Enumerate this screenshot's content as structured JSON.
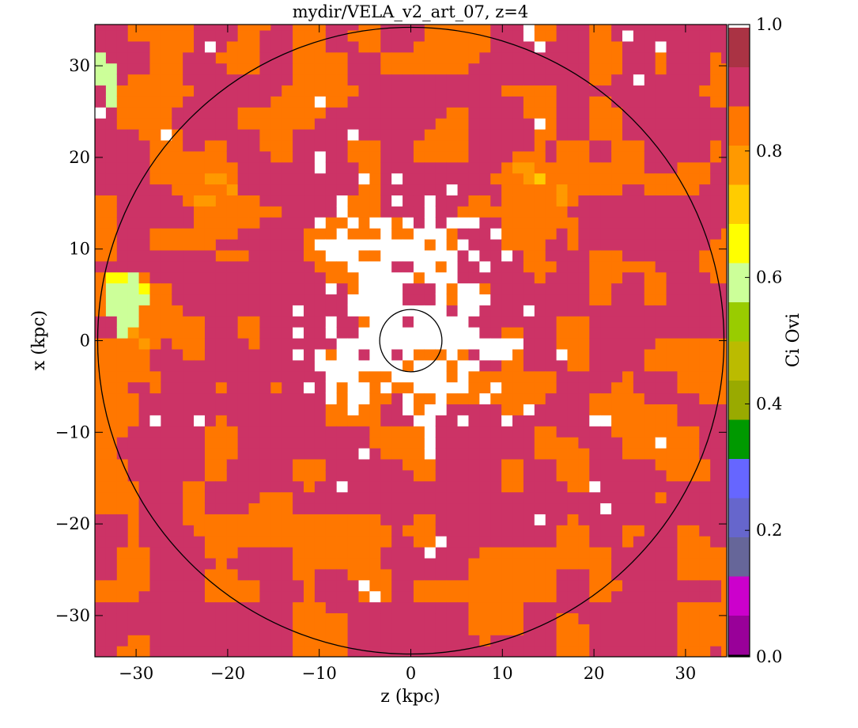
{
  "chart_data": {
    "type": "heatmap",
    "title": "mydir/VELA_v2_art_07, z=4",
    "xlabel": "z  (kpc)",
    "ylabel": "x  (kpc)",
    "xlim": [
      -34.5,
      34.5
    ],
    "ylim": [
      -34.5,
      34.5
    ],
    "x_ticks": [
      -30,
      -20,
      -10,
      0,
      10,
      20,
      30
    ],
    "y_ticks": [
      -30,
      -20,
      -10,
      0,
      10,
      20,
      30
    ],
    "colorbar": {
      "label": "Ci Ovi",
      "range": [
        0.0,
        1.0
      ],
      "ticks": [
        0.0,
        0.2,
        0.4,
        0.6,
        0.8,
        1.0
      ],
      "colors": [
        "#000000",
        "#990099",
        "#cc00cc",
        "#666699",
        "#6666cc",
        "#6666ff",
        "#009900",
        "#99aa00",
        "#bbbb00",
        "#99cc00",
        "#ccff99",
        "#ffff00",
        "#ffcc00",
        "#ff9900",
        "#ff7700",
        "#cc3366",
        "#aa3344",
        "#ffffff"
      ]
    },
    "background_value": 0.9,
    "circles": [
      {
        "center": [
          0,
          0
        ],
        "radius": 34.2
      },
      {
        "center": [
          0,
          0
        ],
        "radius": 3.4
      }
    ],
    "regions": [
      {
        "label": "central white (saturated) zone",
        "value": 1.0,
        "center": [
          0,
          5
        ],
        "extent": "approx |z|<12, -17<x<17"
      },
      {
        "label": "orange clump upper-left",
        "value": 0.8,
        "center": [
          -21,
          14
        ]
      },
      {
        "label": "orange clump upper-right",
        "value": 0.82,
        "center": [
          15,
          17
        ]
      },
      {
        "label": "green/yellow clump left edge",
        "value": 0.55,
        "center": [
          -31,
          4
        ]
      },
      {
        "label": "magenta filaments",
        "value": 0.87,
        "center": [
          -20,
          -10
        ]
      }
    ]
  },
  "icons": {
    "figure": "heatmap-figure"
  }
}
